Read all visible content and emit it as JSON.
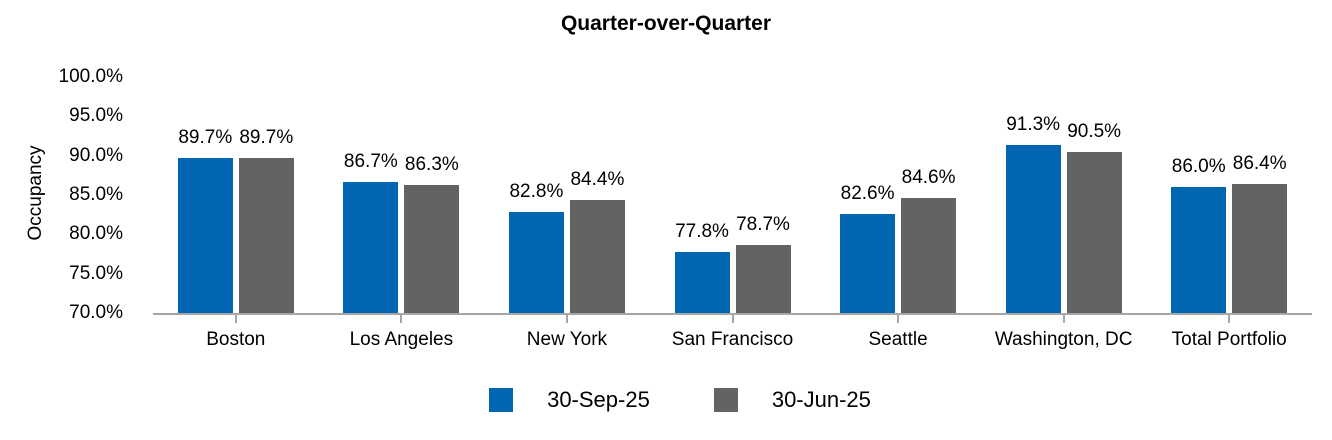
{
  "chart_data": {
    "type": "bar",
    "title": "Quarter-over-Quarter",
    "ylabel": "Occupancy",
    "categories": [
      "Boston",
      "Los Angeles",
      "New York",
      "San Francisco",
      "Seattle",
      "Washington, DC",
      "Total Portfolio"
    ],
    "series": [
      {
        "name": "30-Sep-25",
        "color": "#0066B1",
        "values": [
          89.7,
          86.7,
          82.8,
          77.8,
          82.6,
          91.3,
          86.0
        ],
        "labels": [
          "89.7%",
          "86.7%",
          "82.8%",
          "77.8%",
          "82.6%",
          "91.3%",
          "86.0%"
        ]
      },
      {
        "name": "30-Jun-25",
        "color": "#636363",
        "values": [
          89.7,
          86.3,
          84.4,
          78.7,
          84.6,
          90.5,
          86.4
        ],
        "labels": [
          "89.7%",
          "86.3%",
          "84.4%",
          "78.7%",
          "84.6%",
          "90.5%",
          "86.4%"
        ]
      }
    ],
    "ylim": [
      70,
      100
    ],
    "ytick_values": [
      70,
      75,
      80,
      85,
      90,
      95,
      100
    ],
    "ytick_labels": [
      "70.0%",
      "75.0%",
      "80.0%",
      "85.0%",
      "90.0%",
      "95.0%",
      "100.0%"
    ],
    "grid": false,
    "legend_position": "bottom",
    "axis_color": "#A6A6A6",
    "text_color": "#000000",
    "background_color": "#FFFFFF"
  }
}
